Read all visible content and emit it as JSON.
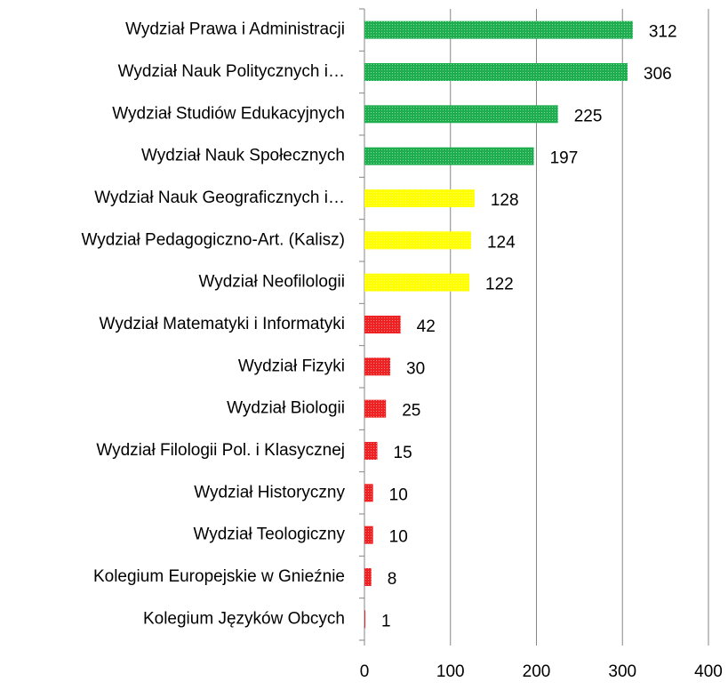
{
  "chart_data": {
    "type": "bar",
    "orientation": "horizontal",
    "categories": [
      "Wydział Prawa i Administracji",
      "Wydział Nauk Politycznych i…",
      "Wydział Studiów Edukacyjnych",
      "Wydział Nauk Społecznych",
      "Wydział Nauk Geograficznych i…",
      "Wydział Pedagogiczno-Art. (Kalisz)",
      "Wydział Neofilologii",
      "Wydział Matematyki i Informatyki",
      "Wydział Fizyki",
      "Wydział Biologii",
      "Wydział Filologii Pol. i Klasycznej",
      "Wydział Historyczny",
      "Wydział Teologiczny",
      "Kolegium Europejskie w Gnieźnie",
      "Kolegium Języków Obcych"
    ],
    "values": [
      312,
      306,
      225,
      197,
      128,
      124,
      122,
      42,
      30,
      25,
      15,
      10,
      10,
      8,
      1
    ],
    "colors": [
      "#1fae4f",
      "#1fae4f",
      "#1fae4f",
      "#1fae4f",
      "#ffff00",
      "#ffff00",
      "#ffff00",
      "#ee2222",
      "#ee2222",
      "#ee2222",
      "#ee2222",
      "#ee2222",
      "#ee2222",
      "#ee2222",
      "#ee2222"
    ],
    "xlim": [
      0,
      400
    ],
    "xticks": [
      0,
      100,
      200,
      300,
      400
    ],
    "grid": true
  }
}
